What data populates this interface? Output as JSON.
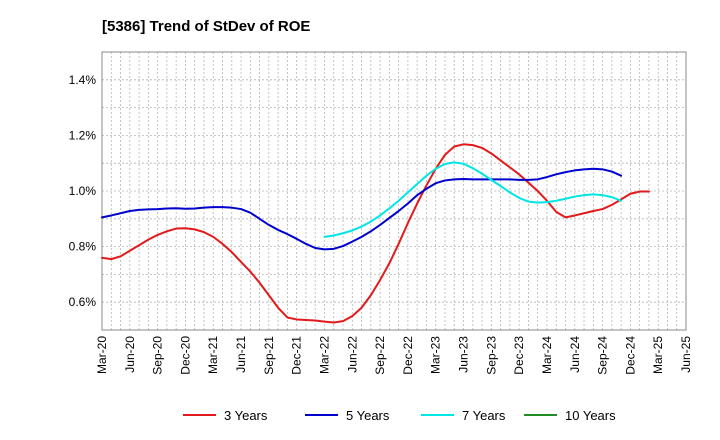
{
  "chart_data": {
    "type": "line",
    "title": "[5386]  Trend of StDev of ROE",
    "xlabel": "",
    "ylabel": "",
    "x_tick_labels": [
      "Mar-20",
      "Jun-20",
      "Sep-20",
      "Dec-20",
      "Mar-21",
      "Jun-21",
      "Sep-21",
      "Dec-21",
      "Mar-22",
      "Jun-22",
      "Sep-22",
      "Dec-22",
      "Mar-23",
      "Jun-23",
      "Sep-23",
      "Dec-23",
      "Mar-24",
      "Jun-24",
      "Sep-24",
      "Dec-24",
      "Mar-25",
      "Jun-25"
    ],
    "y_tick_labels": [
      "0.6%",
      "0.8%",
      "1.0%",
      "1.2%",
      "1.4%"
    ],
    "y_ticks": [
      0.6,
      0.8,
      1.0,
      1.2,
      1.4
    ],
    "ylim": [
      0.5,
      1.5
    ],
    "grid": true,
    "legend_position": "bottom",
    "series": [
      {
        "name": "3 Years",
        "color": "#e31a1c",
        "start_index": 0,
        "values": [
          0.76,
          0.755,
          0.765,
          0.785,
          0.805,
          0.825,
          0.842,
          0.855,
          0.865,
          0.866,
          0.862,
          0.852,
          0.835,
          0.81,
          0.78,
          0.745,
          0.71,
          0.67,
          0.625,
          0.58,
          0.545,
          0.538,
          0.536,
          0.534,
          0.53,
          0.527,
          0.532,
          0.55,
          0.58,
          0.625,
          0.68,
          0.74,
          0.81,
          0.885,
          0.955,
          1.02,
          1.08,
          1.13,
          1.16,
          1.168,
          1.165,
          1.155,
          1.135,
          1.11,
          1.085,
          1.06,
          1.03,
          1.0,
          0.965,
          0.925,
          0.905,
          0.912,
          0.92,
          0.928,
          0.935,
          0.95,
          0.97,
          0.99,
          0.998,
          0.998
        ]
      },
      {
        "name": "5 Years",
        "color": "#0000cc",
        "start_index": 0,
        "values": [
          0.905,
          0.912,
          0.92,
          0.928,
          0.932,
          0.934,
          0.935,
          0.937,
          0.938,
          0.936,
          0.937,
          0.94,
          0.942,
          0.942,
          0.94,
          0.935,
          0.922,
          0.9,
          0.878,
          0.86,
          0.845,
          0.828,
          0.81,
          0.795,
          0.79,
          0.792,
          0.802,
          0.818,
          0.835,
          0.855,
          0.878,
          0.903,
          0.928,
          0.955,
          0.985,
          1.008,
          1.028,
          1.038,
          1.042,
          1.043,
          1.042,
          1.042,
          1.042,
          1.042,
          1.042,
          1.04,
          1.04,
          1.042,
          1.05,
          1.06,
          1.068,
          1.074,
          1.078,
          1.08,
          1.078,
          1.07,
          1.055
        ]
      },
      {
        "name": "7 Years",
        "color": "#00e5e5",
        "start_index": 24,
        "values": [
          0.835,
          0.84,
          0.848,
          0.858,
          0.872,
          0.89,
          0.912,
          0.938,
          0.965,
          0.995,
          1.025,
          1.055,
          1.08,
          1.097,
          1.103,
          1.098,
          1.082,
          1.062,
          1.04,
          1.018,
          0.995,
          0.975,
          0.962,
          0.958,
          0.96,
          0.965,
          0.972,
          0.98,
          0.985,
          0.988,
          0.985,
          0.978,
          0.965
        ]
      },
      {
        "name": "10 Years",
        "color": "#228b22",
        "start_index": 0,
        "values": []
      }
    ]
  }
}
